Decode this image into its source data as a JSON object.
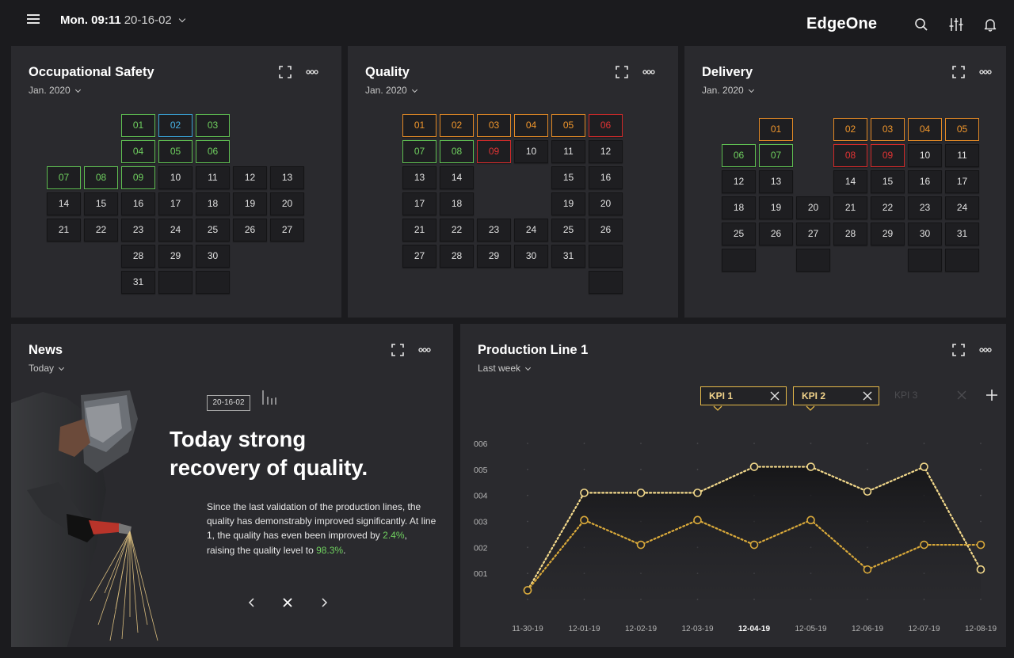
{
  "topbar": {
    "day_time": "Mon. 09:11",
    "date": "20-16-02",
    "brand": "EdgeOne",
    "icons": [
      "menu-icon",
      "search-icon",
      "sliders-icon",
      "bell-icon"
    ]
  },
  "safety": {
    "title": "Occupational Safety",
    "period": "Jan. 2020",
    "days": [
      {
        "d": "01",
        "s": "g"
      },
      {
        "d": "02",
        "s": "b"
      },
      {
        "d": "03",
        "s": "g"
      },
      {
        "d": "04",
        "s": "g"
      },
      {
        "d": "05",
        "s": "g"
      },
      {
        "d": "06",
        "s": "g"
      },
      {
        "d": "07",
        "s": "g"
      },
      {
        "d": "08",
        "s": "g"
      },
      {
        "d": "09",
        "s": "g"
      },
      {
        "d": "10"
      },
      {
        "d": "11"
      },
      {
        "d": "12"
      },
      {
        "d": "13"
      },
      {
        "d": "14"
      },
      {
        "d": "15"
      },
      {
        "d": "16"
      },
      {
        "d": "17"
      },
      {
        "d": "18"
      },
      {
        "d": "19"
      },
      {
        "d": "20"
      },
      {
        "d": "21"
      },
      {
        "d": "22"
      },
      {
        "d": "23"
      },
      {
        "d": "24"
      },
      {
        "d": "25"
      },
      {
        "d": "26"
      },
      {
        "d": "27"
      },
      {
        "d": "28"
      },
      {
        "d": "29"
      },
      {
        "d": "30"
      },
      {
        "d": "31"
      },
      {
        "d": ""
      },
      {
        "d": ""
      }
    ]
  },
  "quality": {
    "title": "Quality",
    "period": "Jan. 2020",
    "days": [
      {
        "d": "01",
        "s": "o"
      },
      {
        "d": "02",
        "s": "o"
      },
      {
        "d": "03",
        "s": "o"
      },
      {
        "d": "04",
        "s": "o"
      },
      {
        "d": "05",
        "s": "o"
      },
      {
        "d": "06",
        "s": "r"
      },
      {
        "d": "07",
        "s": "g"
      },
      {
        "d": "08",
        "s": "g"
      },
      {
        "d": "09",
        "s": "r"
      },
      {
        "d": "10"
      },
      {
        "d": "11"
      },
      {
        "d": "12"
      },
      {
        "d": "13"
      },
      {
        "d": "14"
      },
      {
        "d": "15"
      },
      {
        "d": "16"
      },
      {
        "d": "17"
      },
      {
        "d": "18"
      },
      {
        "d": "19"
      },
      {
        "d": "20"
      },
      {
        "d": "21"
      },
      {
        "d": "22"
      },
      {
        "d": "23"
      },
      {
        "d": "24"
      },
      {
        "d": "25"
      },
      {
        "d": "26"
      },
      {
        "d": "27"
      },
      {
        "d": "28"
      },
      {
        "d": "29"
      },
      {
        "d": "30"
      },
      {
        "d": "31"
      },
      {
        "d": ""
      },
      {
        "d": ""
      }
    ]
  },
  "delivery": {
    "title": "Delivery",
    "period": "Jan. 2020",
    "days": [
      {
        "d": "01",
        "s": "o"
      },
      {
        "d": "02",
        "s": "o"
      },
      {
        "d": "03",
        "s": "o"
      },
      {
        "d": "04",
        "s": "o"
      },
      {
        "d": "05",
        "s": "o"
      },
      {
        "d": "06",
        "s": "g"
      },
      {
        "d": "07",
        "s": "g"
      },
      {
        "d": "08",
        "s": "r"
      },
      {
        "d": "09",
        "s": "r"
      },
      {
        "d": "10"
      },
      {
        "d": "11"
      },
      {
        "d": "12"
      },
      {
        "d": "13"
      },
      {
        "d": "14"
      },
      {
        "d": "15"
      },
      {
        "d": "16"
      },
      {
        "d": "17"
      },
      {
        "d": "18"
      },
      {
        "d": "19"
      },
      {
        "d": "20"
      },
      {
        "d": "21"
      },
      {
        "d": "22"
      },
      {
        "d": "23"
      },
      {
        "d": "24"
      },
      {
        "d": "25"
      },
      {
        "d": "26"
      },
      {
        "d": "27"
      },
      {
        "d": "28"
      },
      {
        "d": "29"
      },
      {
        "d": "30"
      },
      {
        "d": "31"
      },
      {
        "d": ""
      },
      {
        "d": ""
      },
      {
        "d": ""
      },
      {
        "d": ""
      }
    ]
  },
  "news": {
    "title": "News",
    "period": "Today",
    "date_tag": "20-16-02",
    "headline_1": "Today strong",
    "headline_2": "recovery of quality.",
    "body_1": "Since the last validation of the production lines, the quality has demonstrably improved significantly. At line 1, the quality has even been improved by ",
    "highlight_1": "2.4%",
    "body_2": ", raising the quality level to ",
    "highlight_2": "98.3%",
    "body_3": "."
  },
  "production": {
    "title": "Production Line 1",
    "period": "Last week",
    "kpis": [
      {
        "label": "KPI 1",
        "active": true
      },
      {
        "label": "KPI 2",
        "active": true
      },
      {
        "label": "KPI 3",
        "active": false
      }
    ]
  },
  "chart_data": {
    "type": "line",
    "x": [
      "11-30-19",
      "12-01-19",
      "12-02-19",
      "12-03-19",
      "12-04-19",
      "12-05-19",
      "12-06-19",
      "12-07-19",
      "12-08-19"
    ],
    "x_highlight": "12-04-19",
    "y_ticks": [
      "001",
      "002",
      "003",
      "004",
      "005",
      "006"
    ],
    "ylim": [
      0,
      6
    ],
    "series": [
      {
        "name": "KPI 1",
        "color": "#f3d98b",
        "values": [
          0.35,
          4.1,
          4.1,
          4.1,
          5.1,
          5.1,
          4.15,
          5.1,
          1.15
        ]
      },
      {
        "name": "KPI 2",
        "color": "#d9a93a",
        "values": [
          0.35,
          3.05,
          2.1,
          3.05,
          2.1,
          3.05,
          1.15,
          2.1,
          2.1
        ]
      }
    ],
    "grid": "dotted"
  }
}
